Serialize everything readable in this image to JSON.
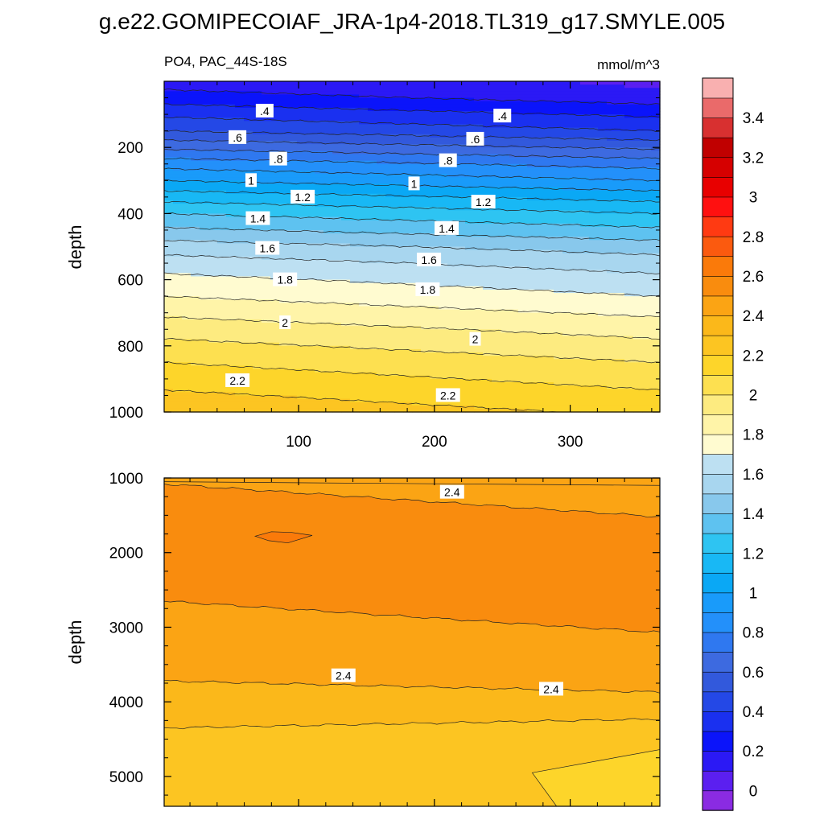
{
  "title": "g.e22.GOMIPECOIAF_JRA-1p4-2018.TL319_g17.SMYLE.005",
  "colors": {
    "levels": [
      -0.1,
      0,
      0.1,
      0.2,
      0.3,
      0.4,
      0.5,
      0.6,
      0.7,
      0.8,
      0.9,
      1.0,
      1.1,
      1.2,
      1.3,
      1.4,
      1.5,
      1.6,
      1.7,
      1.8,
      1.9,
      2.0,
      2.1,
      2.2,
      2.3,
      2.4,
      2.5,
      2.6,
      2.7,
      2.8,
      2.9,
      3.0,
      3.1,
      3.2,
      3.3,
      3.4,
      3.5,
      3.6
    ],
    "palette": [
      "#8a2be2",
      "#5b1ff0",
      "#2b19f5",
      "#0b14fa",
      "#1a30f0",
      "#2448e6",
      "#3259dc",
      "#3d6ae0",
      "#2f78f0",
      "#2390fa",
      "#199bfa",
      "#0aa8f5",
      "#18b8f5",
      "#2ec4f2",
      "#5ec2f0",
      "#88c8ec",
      "#a8d6ef",
      "#bde0f2",
      "#fffbd0",
      "#fff4a8",
      "#fdeb80",
      "#fde050",
      "#fdd52a",
      "#fcc522",
      "#fbb81a",
      "#fba414",
      "#f98c0e",
      "#fa7a0a",
      "#fb5a0f",
      "#ff3a12",
      "#ff1010",
      "#e80000",
      "#d60000",
      "#c00000",
      "#d83030",
      "#ea6a6a",
      "#f9b0b0"
    ]
  },
  "chart_data": [
    {
      "type": "heatmap",
      "subtitle_left": "PO4, PAC_44S-18S",
      "subtitle_right": "mmol/m^3",
      "xlabel": "",
      "ylabel": "depth",
      "xlim": [
        1,
        366
      ],
      "ylim": [
        1000,
        0
      ],
      "x_ticks": [
        100,
        200,
        300
      ],
      "y_ticks": [
        200,
        400,
        600,
        800,
        1000
      ],
      "depth_profile": [
        [
          0,
          0.18
        ],
        [
          25,
          0.2
        ],
        [
          50,
          0.25
        ],
        [
          100,
          0.38
        ],
        [
          150,
          0.5
        ],
        [
          200,
          0.68
        ],
        [
          250,
          0.86
        ],
        [
          300,
          1.0
        ],
        [
          350,
          1.16
        ],
        [
          400,
          1.3
        ],
        [
          450,
          1.42
        ],
        [
          500,
          1.55
        ],
        [
          550,
          1.65
        ],
        [
          600,
          1.73
        ],
        [
          650,
          1.8
        ],
        [
          700,
          1.88
        ],
        [
          750,
          1.96
        ],
        [
          800,
          2.03
        ],
        [
          850,
          2.1
        ],
        [
          900,
          2.16
        ],
        [
          950,
          2.22
        ],
        [
          1000,
          2.28
        ]
      ],
      "seasonal_tilt": 0.1,
      "contour_labels": [
        {
          "text": ".4",
          "x": 75,
          "y": 90
        },
        {
          "text": ".4",
          "x": 250,
          "y": 105
        },
        {
          "text": ".6",
          "x": 55,
          "y": 170
        },
        {
          "text": ".6",
          "x": 230,
          "y": 175
        },
        {
          "text": ".8",
          "x": 85,
          "y": 235
        },
        {
          "text": ".8",
          "x": 210,
          "y": 240
        },
        {
          "text": "1",
          "x": 65,
          "y": 300
        },
        {
          "text": "1",
          "x": 185,
          "y": 310
        },
        {
          "text": "1.2",
          "x": 103,
          "y": 350
        },
        {
          "text": "1.2",
          "x": 236,
          "y": 365
        },
        {
          "text": "1.4",
          "x": 70,
          "y": 415
        },
        {
          "text": "1.4",
          "x": 209,
          "y": 445
        },
        {
          "text": "1.6",
          "x": 77,
          "y": 505
        },
        {
          "text": "1.6",
          "x": 196,
          "y": 540
        },
        {
          "text": "1.8",
          "x": 90,
          "y": 600
        },
        {
          "text": "1.8",
          "x": 195,
          "y": 630
        },
        {
          "text": "2",
          "x": 90,
          "y": 730
        },
        {
          "text": "2",
          "x": 230,
          "y": 780
        },
        {
          "text": "2.2",
          "x": 55,
          "y": 905
        },
        {
          "text": "2.2",
          "x": 210,
          "y": 950
        }
      ]
    },
    {
      "type": "heatmap",
      "xlabel": "",
      "ylabel": "depth",
      "xlim": [
        1,
        366
      ],
      "ylim": [
        5400,
        1000
      ],
      "x_ticks": [
        100,
        200,
        300
      ],
      "y_ticks": [
        1000,
        2000,
        3000,
        4000,
        5000
      ],
      "bands": [
        {
          "level": 2.4,
          "value": 2.45,
          "top_left": 1000,
          "top_right": 1000
        },
        {
          "level": 2.5,
          "value": 2.55,
          "top_left": 1080,
          "top_right": 1520
        },
        {
          "level": 2.4,
          "value": 2.45,
          "top_left": 2650,
          "top_right": 3070
        },
        {
          "level": 2.3,
          "value": 2.35,
          "top_left": 3720,
          "top_right": 3870
        },
        {
          "level": 2.2,
          "value": 2.25,
          "top_left": 4350,
          "top_right": 4230
        }
      ],
      "contour_labels": [
        {
          "text": "2.4",
          "x": 213,
          "y": 1190
        },
        {
          "text": "2.4",
          "x": 133,
          "y": 3650
        },
        {
          "text": "2.4",
          "x": 286,
          "y": 3830
        }
      ]
    }
  ],
  "colorbar": {
    "tick_labels": [
      "3.4",
      "3.2",
      "3",
      "2.8",
      "2.6",
      "2.4",
      "2.2",
      "2",
      "1.8",
      "1.6",
      "1.4",
      "1.2",
      "1",
      "0.8",
      "0.6",
      "0.4",
      "0.2",
      "0"
    ],
    "tick_values": [
      3.4,
      3.2,
      3.0,
      2.8,
      2.6,
      2.4,
      2.2,
      2.0,
      1.8,
      1.6,
      1.4,
      1.2,
      1.0,
      0.8,
      0.6,
      0.4,
      0.2,
      0
    ]
  }
}
